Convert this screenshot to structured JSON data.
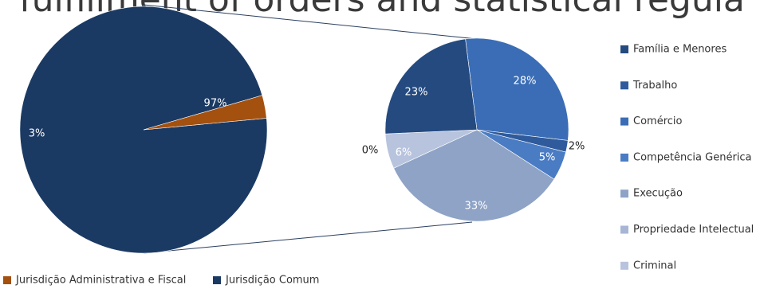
{
  "title": "fulfillment of orders and statistical regula",
  "chart_data": [
    {
      "type": "pie",
      "values": [
        97,
        3
      ],
      "labels": [
        "97%",
        "3%"
      ],
      "categories": [
        "Jurisdição Comum",
        "Jurisdição Administrativa e Fiscal"
      ],
      "colors": [
        "#1b3a63",
        "#a4500f"
      ],
      "legend_position": "bottom-left"
    },
    {
      "type": "pie",
      "values": [
        28,
        2,
        5,
        33,
        6,
        0,
        23
      ],
      "labels": [
        "28%",
        "2%",
        "5%",
        "33%",
        "6%",
        "0%",
        "23%"
      ],
      "categories": [
        "Comércio",
        "Trabalho",
        "Competência Genérica",
        "Execução",
        "Criminal",
        "Propriedade Intelectual",
        "Família e Menores"
      ],
      "colors": [
        "#3a6db5",
        "#2f5b9c",
        "#4a7cc4",
        "#8ea3c6",
        "#b8c4de",
        "#a7b6d5",
        "#244a80"
      ],
      "legend": [
        "Família e Menores",
        "Trabalho",
        "Comércio",
        "Competência Genérica",
        "Execução",
        "Propriedade Intelectual",
        "Criminal"
      ],
      "legend_colors": [
        "#244a80",
        "#2f5b9c",
        "#3a6db5",
        "#4a7cc4",
        "#8ea3c6",
        "#a7b6d5",
        "#b8c4de"
      ],
      "legend_position": "right"
    }
  ]
}
